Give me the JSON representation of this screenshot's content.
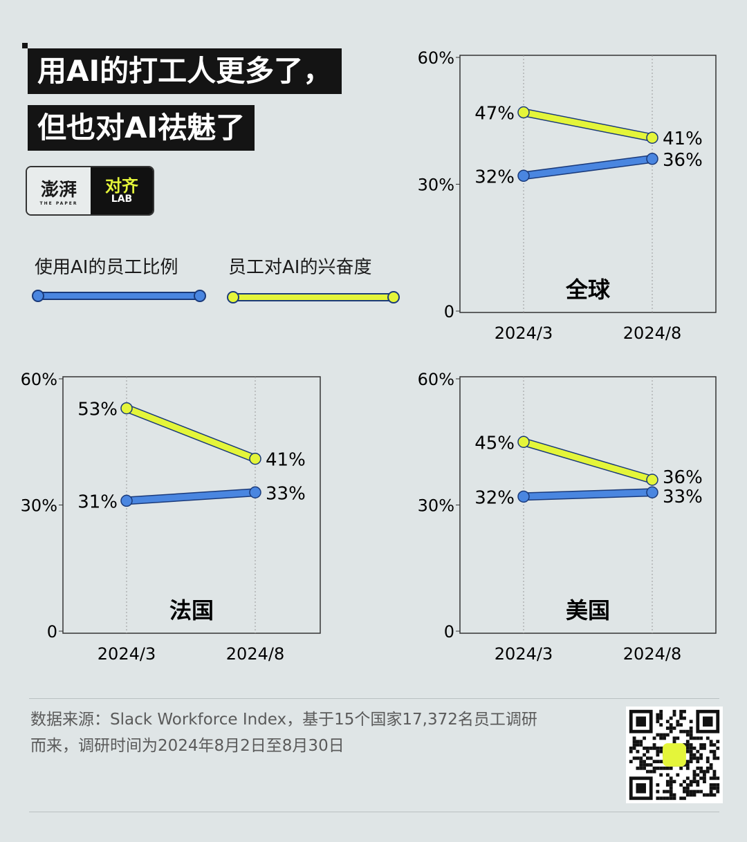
{
  "title": {
    "line1": "用AI的打工人更多了，",
    "line2": "但也对AI祛魅了"
  },
  "logo": {
    "left": "澎湃",
    "left_sub": "THE PAPER",
    "right": "对齐",
    "right_sub": "LAB"
  },
  "legend": [
    {
      "label": "使用AI的员工比例",
      "color": "#4a86e0"
    },
    {
      "label": "员工对AI的兴奋度",
      "color": "#e4f53a"
    }
  ],
  "colors": {
    "blue": "#4a86e0",
    "yellow": "#e4f53a",
    "background": "#dfe5e6",
    "title_bg": "#141414"
  },
  "chart_data": [
    {
      "type": "line",
      "title": "全球",
      "categories": [
        "2024/3",
        "2024/8"
      ],
      "ylim": [
        0,
        60
      ],
      "yticks": [
        "0",
        "30%",
        "60%"
      ],
      "series": [
        {
          "name": "使用AI的员工比例",
          "values": [
            32,
            36
          ]
        },
        {
          "name": "员工对AI的兴奋度",
          "values": [
            47,
            41
          ]
        }
      ]
    },
    {
      "type": "line",
      "title": "法国",
      "categories": [
        "2024/3",
        "2024/8"
      ],
      "ylim": [
        0,
        60
      ],
      "yticks": [
        "0",
        "30%",
        "60%"
      ],
      "series": [
        {
          "name": "使用AI的员工比例",
          "values": [
            31,
            33
          ]
        },
        {
          "name": "员工对AI的兴奋度",
          "values": [
            53,
            41
          ]
        }
      ]
    },
    {
      "type": "line",
      "title": "美国",
      "categories": [
        "2024/3",
        "2024/8"
      ],
      "ylim": [
        0,
        60
      ],
      "yticks": [
        "0",
        "30%",
        "60%"
      ],
      "series": [
        {
          "name": "使用AI的员工比例",
          "values": [
            32,
            33
          ]
        },
        {
          "name": "员工对AI的兴奋度",
          "values": [
            45,
            36
          ]
        }
      ]
    }
  ],
  "footer": {
    "line1": "数据来源：Slack Workforce Index，基于15个国家17,372名员工调研",
    "line2": "而来，调研时间为2024年8月2日至8月30日"
  }
}
